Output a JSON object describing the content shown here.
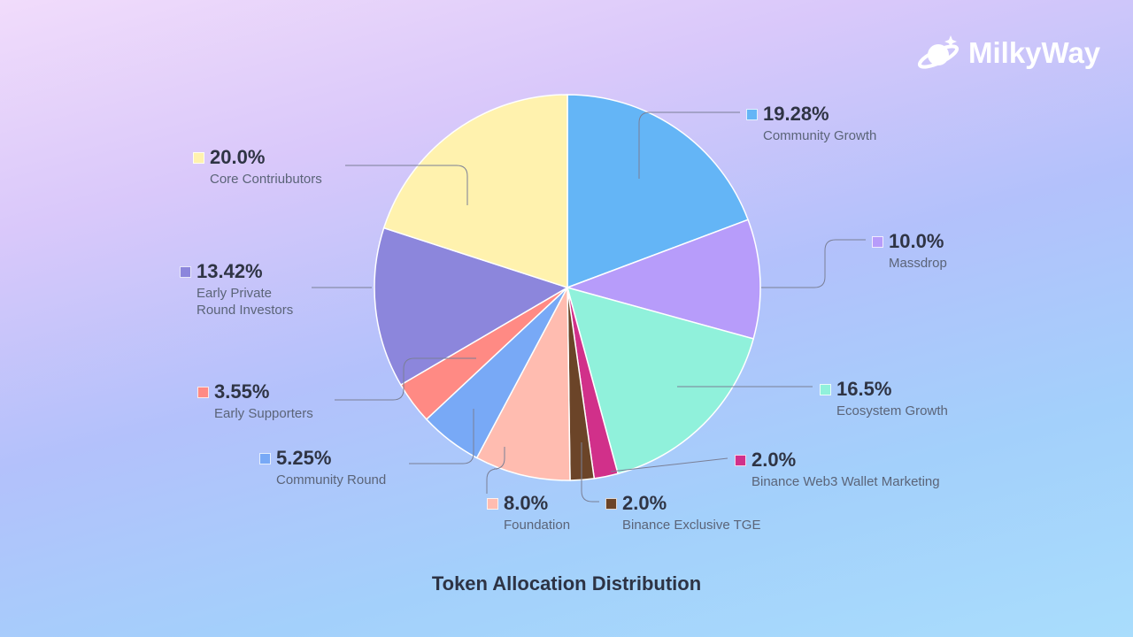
{
  "brand": {
    "name": "MilkyWay"
  },
  "chart_data": {
    "type": "pie",
    "title": "Token Allocation Distribution",
    "start": "top",
    "direction": "clockwise",
    "slices": [
      {
        "label": "Community Growth",
        "value": 19.28,
        "display": "19.28%",
        "color": "#64b5f6"
      },
      {
        "label": "Massdrop",
        "value": 10.0,
        "display": "10.0%",
        "color": "#b79cfa"
      },
      {
        "label": "Ecosystem Growth",
        "value": 16.5,
        "display": "16.5%",
        "color": "#90f1db"
      },
      {
        "label": "Binance Web3 Wallet Marketing",
        "value": 2.0,
        "display": "2.0%",
        "color": "#d1308a"
      },
      {
        "label": "Binance Exclusive TGE",
        "value": 2.0,
        "display": "2.0%",
        "color": "#6b4428"
      },
      {
        "label": "Foundation",
        "value": 8.0,
        "display": "8.0%",
        "color": "#ffbcb0"
      },
      {
        "label": "Community Round",
        "value": 5.25,
        "display": "5.25%",
        "color": "#78a9f6"
      },
      {
        "label": "Early Supporters",
        "value": 3.55,
        "display": "3.55%",
        "color": "#ff8a84"
      },
      {
        "label": "Early Private Round Investors",
        "value": 13.42,
        "display": "13.42%",
        "color": "#8c86dc"
      },
      {
        "label": "Core Contriubutors",
        "value": 20.0,
        "display": "20.0%",
        "color": "#fff2ae"
      }
    ]
  }
}
